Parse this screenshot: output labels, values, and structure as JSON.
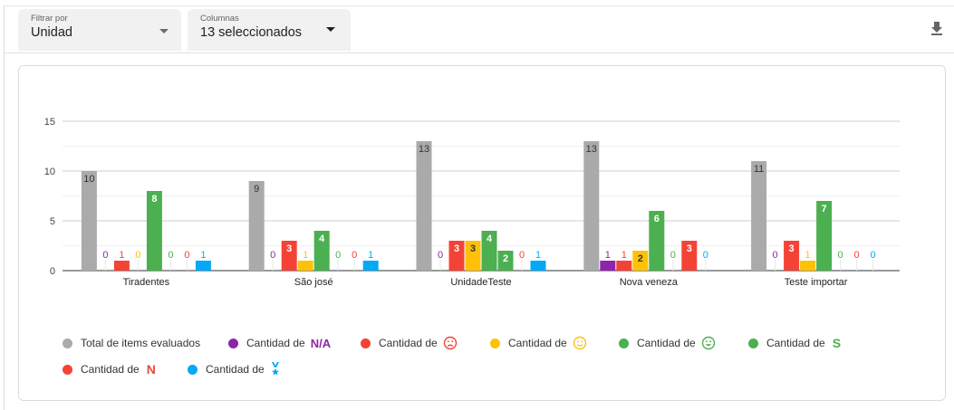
{
  "filters": {
    "unidad": {
      "label": "Filtrar por",
      "value": "Unidad"
    },
    "columnas": {
      "label": "Columnas",
      "value": "13 seleccionados"
    }
  },
  "toolbar": {
    "download_icon": "download-icon"
  },
  "colors": {
    "total": "#aaaaaa",
    "na": "#8e24aa",
    "sad": "#f44336",
    "neutral": "#ffc107",
    "happy": "#4caf50",
    "s": "#4caf50",
    "n": "#f44336",
    "medal": "#03a9f4"
  },
  "chart_data": {
    "type": "bar",
    "categories": [
      "Tiradentes",
      "São josé",
      "UnidadeTeste",
      "Nova veneza",
      "Teste importar"
    ],
    "ylim": [
      0,
      15
    ],
    "yticks": [
      0,
      5,
      10,
      15
    ],
    "series": [
      {
        "name": "Total de items evaluados",
        "key": "total",
        "values": [
          10,
          9,
          13,
          13,
          11
        ]
      },
      {
        "name": "Cantidad de N/A",
        "key": "na",
        "values": [
          0,
          0,
          0,
          1,
          0
        ]
      },
      {
        "name": "Cantidad de sad",
        "key": "sad",
        "values": [
          1,
          3,
          3,
          1,
          3
        ]
      },
      {
        "name": "Cantidad de neutral",
        "key": "neutral",
        "values": [
          0,
          1,
          3,
          2,
          1
        ]
      },
      {
        "name": "Cantidad de happy",
        "key": "happy",
        "values": [
          8,
          4,
          4,
          6,
          7
        ]
      },
      {
        "name": "Cantidad de S",
        "key": "s",
        "values": [
          0,
          0,
          2,
          0,
          0
        ]
      },
      {
        "name": "Cantidad de N",
        "key": "n",
        "values": [
          0,
          0,
          0,
          3,
          0
        ]
      },
      {
        "name": "Cantidad de medal",
        "key": "medal",
        "values": [
          1,
          1,
          1,
          0,
          0
        ]
      }
    ]
  },
  "legend": [
    {
      "key": "total",
      "text": "Total de items evaluados",
      "symbol": ""
    },
    {
      "key": "na",
      "text": "Cantidad de",
      "symbol": "N/A"
    },
    {
      "key": "sad",
      "text": "Cantidad de",
      "symbol": "sad-face-icon"
    },
    {
      "key": "neutral",
      "text": "Cantidad de",
      "symbol": "neutral-face-icon"
    },
    {
      "key": "happy",
      "text": "Cantidad de",
      "symbol": "happy-face-icon"
    },
    {
      "key": "s",
      "text": "Cantidad de",
      "symbol": "S"
    },
    {
      "key": "n",
      "text": "Cantidad de",
      "symbol": "N"
    },
    {
      "key": "medal",
      "text": "Cantidad de",
      "symbol": "medal-icon"
    }
  ]
}
